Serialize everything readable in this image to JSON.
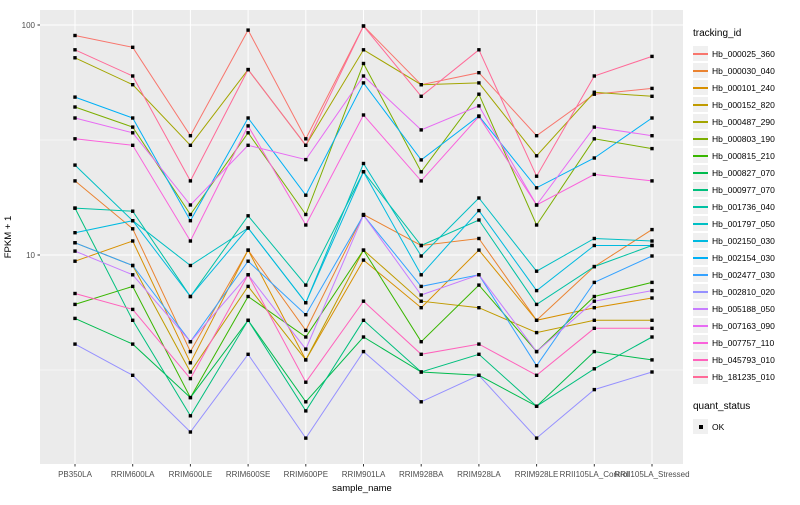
{
  "figure": {
    "background": "#FFFFFF",
    "panel_bg": "#EBEBEB",
    "grid_color": "#FFFFFF",
    "axis_text_color": "#4D4D4D",
    "title_color": "#000000"
  },
  "legend": {
    "tracking_title": "tracking_id",
    "quant_title": "quant_status",
    "quant_ok_label": "OK",
    "quant_marker": "black-square"
  },
  "chart_data": {
    "type": "line",
    "title": "",
    "xlabel": "sample_name",
    "ylabel": "FPKM + 1",
    "y_scale": "log10",
    "y_ticks": [
      10,
      100
    ],
    "y_minor_ticks": [
      3.1623,
      31.623
    ],
    "ylim": [
      1.2,
      116
    ],
    "grid": true,
    "legend_position": "right",
    "point_marker": {
      "shape": "square",
      "color": "#000000",
      "meaning": "quant_status OK"
    },
    "categories": [
      "PB350LA",
      "RRIM600LA",
      "RRIM600LE",
      "RRIM600SE",
      "RRIM600PE",
      "RRIM901LA",
      "RRIM928BA",
      "RRIM928LA",
      "RRIM928LE",
      "RRII105LA_Control",
      "RRII105LA_Stressed"
    ],
    "series": [
      {
        "name": "Hb_000025_360",
        "color": "#F8766D",
        "values": [
          90,
          80,
          33,
          95,
          32,
          99,
          55,
          62,
          33,
          50,
          53
        ]
      },
      {
        "name": "Hb_000030_040",
        "color": "#EA8331",
        "values": [
          21,
          13,
          3.8,
          10.5,
          4.7,
          15,
          11,
          11.8,
          5.2,
          8.9,
          12.9
        ]
      },
      {
        "name": "Hb_000101_240",
        "color": "#D89000",
        "values": [
          9.4,
          11.5,
          3.4,
          10.5,
          3.5,
          9.5,
          5.9,
          10.5,
          5.2,
          5.9,
          6.5
        ]
      },
      {
        "name": "Hb_000152_820",
        "color": "#C09B00",
        "values": [
          11.3,
          9,
          3.1,
          7.3,
          3.5,
          10.5,
          6.3,
          5.9,
          4.6,
          5.2,
          5.2
        ]
      },
      {
        "name": "Hb_000487_290",
        "color": "#A3A500",
        "values": [
          72,
          55,
          30,
          64,
          30,
          78,
          55,
          56,
          27,
          51,
          49
        ]
      },
      {
        "name": "Hb_000803_190",
        "color": "#7CAE00",
        "values": [
          44,
          36,
          15,
          34,
          15,
          68,
          23,
          50,
          13.5,
          32,
          29
        ]
      },
      {
        "name": "Hb_000815_210",
        "color": "#39B600",
        "values": [
          6.1,
          7.3,
          2.4,
          6.6,
          4.4,
          10.5,
          4.2,
          7.4,
          3.8,
          6.6,
          7.6
        ]
      },
      {
        "name": "Hb_000827_070",
        "color": "#00BB4E",
        "values": [
          5.3,
          4.1,
          2.4,
          5.2,
          2.3,
          4.4,
          3.1,
          3,
          2.2,
          3.8,
          3.5
        ]
      },
      {
        "name": "Hb_000977_070",
        "color": "#00BF7D",
        "values": [
          16,
          5.2,
          2,
          5.2,
          2.1,
          5.2,
          3.1,
          3.7,
          2.2,
          3.2,
          4.4
        ]
      },
      {
        "name": "Hb_001736_040",
        "color": "#00C1A3",
        "values": [
          16,
          15.5,
          6.6,
          14.8,
          7.4,
          23,
          11,
          14.2,
          6.1,
          8.9,
          11
        ]
      },
      {
        "name": "Hb_001797_050",
        "color": "#00BFC4",
        "values": [
          24.6,
          14.1,
          9,
          13.1,
          6.2,
          25,
          9.9,
          17.7,
          8.5,
          11.8,
          11.5
        ]
      },
      {
        "name": "Hb_002150_030",
        "color": "#00BAE0",
        "values": [
          12.5,
          14.1,
          6.6,
          13.1,
          6.2,
          23,
          8.2,
          15.6,
          7,
          11,
          11
        ]
      },
      {
        "name": "Hb_002154_030",
        "color": "#00B0F6",
        "values": [
          48.6,
          39.4,
          14.1,
          39.4,
          18.2,
          56,
          25.9,
          40.2,
          19.6,
          26.4,
          39.4
        ]
      },
      {
        "name": "Hb_002477_030",
        "color": "#35A2FF",
        "values": [
          11.3,
          9,
          4.2,
          9.4,
          5.5,
          14.9,
          7.3,
          8.2,
          3.3,
          7.6,
          9.9
        ]
      },
      {
        "name": "Hb_002810_020",
        "color": "#9590FF",
        "values": [
          4.1,
          3,
          1.7,
          3.7,
          1.6,
          3.8,
          2.3,
          3,
          1.6,
          2.6,
          3.1
        ]
      },
      {
        "name": "Hb_005188_050",
        "color": "#C77CFF",
        "values": [
          10.4,
          8.2,
          4.2,
          8.2,
          3.9,
          14.9,
          6.7,
          8.2,
          3.8,
          6.3,
          7
        ]
      },
      {
        "name": "Hb_007163_090",
        "color": "#E76BF3",
        "values": [
          39.4,
          34,
          16.5,
          30,
          26,
          60,
          35,
          44.5,
          16.5,
          36,
          33
        ]
      },
      {
        "name": "Hb_007757_110",
        "color": "#FA62DB",
        "values": [
          32,
          30,
          11.5,
          36.4,
          13.5,
          40.6,
          21,
          40,
          16.5,
          22.4,
          21
        ]
      },
      {
        "name": "Hb_045793_010",
        "color": "#FF62BC",
        "values": [
          6.8,
          5.8,
          2.9,
          8.2,
          2.8,
          6.3,
          3.7,
          4.1,
          3,
          4.8,
          4.8
        ]
      },
      {
        "name": "Hb_181235_010",
        "color": "#FF6A98",
        "values": [
          78,
          60,
          21,
          64,
          30,
          99,
          49,
          78,
          22,
          60,
          73
        ]
      }
    ]
  }
}
